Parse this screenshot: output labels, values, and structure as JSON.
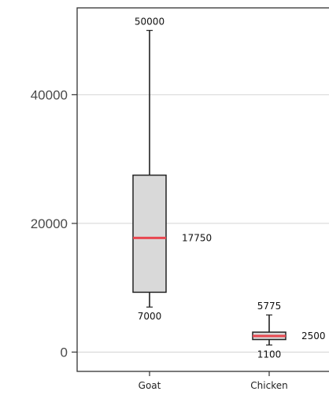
{
  "chart_data": {
    "type": "box",
    "categories": [
      "Goat",
      "Chicken"
    ],
    "boxes": [
      {
        "category": "Goat",
        "min": 7000,
        "q1": 9300,
        "median": 17750,
        "q3": 27500,
        "max": 50000,
        "labels": {
          "max": "50000",
          "median": "17750",
          "min": "7000"
        }
      },
      {
        "category": "Chicken",
        "min": 1100,
        "q1": 1950,
        "median": 2500,
        "q3": 3100,
        "max": 5775,
        "labels": {
          "max": "5775",
          "median": "2500",
          "min": "1100"
        }
      }
    ],
    "y_ticks": [
      0,
      20000,
      40000
    ],
    "y_tick_labels": [
      "0",
      "20000",
      "40000"
    ],
    "ylim": [
      -3000,
      53500
    ],
    "grid": true,
    "colors": {
      "box_fill": "#d9d9d9",
      "median": "#e8464f",
      "whisker": "#222222",
      "grid": "#d4d4d4"
    }
  }
}
